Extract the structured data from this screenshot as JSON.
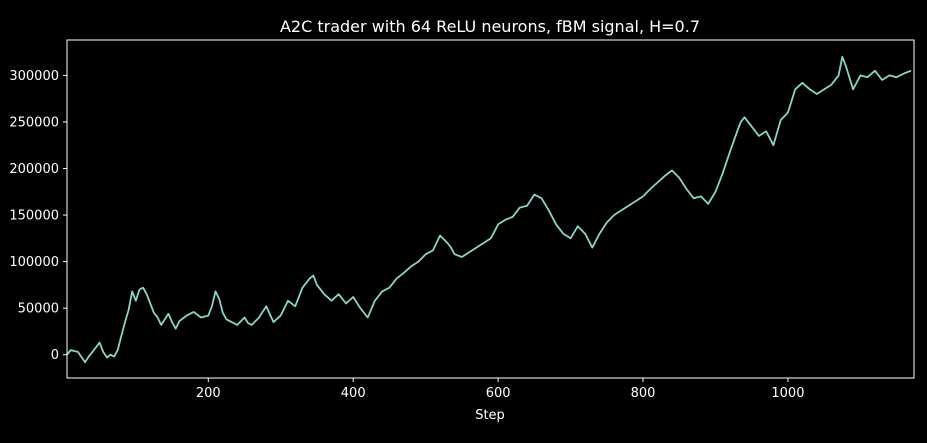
{
  "chart_data": {
    "type": "line",
    "title": "A2C trader with 64 ReLU neurons, fBM signal, H=0.7",
    "xlabel": "Step",
    "ylabel": "",
    "xlim": [
      5,
      1174
    ],
    "ylim": [
      -25000,
      338000
    ],
    "xticks": [
      200,
      400,
      600,
      800,
      1000
    ],
    "yticks": [
      0,
      50000,
      100000,
      150000,
      200000,
      250000,
      300000
    ],
    "grid": false,
    "legend": "none",
    "colors": {
      "background": "#000000",
      "line": "#8dd3c7",
      "text": "#ffffff",
      "axes": "#ffffff"
    },
    "series": [
      {
        "x": [
          5,
          10,
          20,
          30,
          35,
          40,
          50,
          55,
          60,
          65,
          70,
          75,
          80,
          85,
          90,
          95,
          100,
          105,
          110,
          115,
          120,
          125,
          130,
          135,
          140,
          145,
          150,
          155,
          160,
          170,
          180,
          190,
          200,
          205,
          210,
          215,
          220,
          225,
          230,
          240,
          250,
          255,
          260,
          270,
          280,
          290,
          300,
          310,
          320,
          330,
          340,
          345,
          350,
          360,
          370,
          380,
          390,
          400,
          410,
          420,
          430,
          440,
          450,
          460,
          470,
          480,
          490,
          500,
          510,
          520,
          530,
          535,
          540,
          550,
          560,
          570,
          580,
          590,
          600,
          610,
          620,
          630,
          640,
          650,
          660,
          670,
          680,
          690,
          700,
          710,
          720,
          730,
          740,
          750,
          760,
          770,
          780,
          790,
          800,
          810,
          820,
          830,
          840,
          850,
          860,
          870,
          880,
          890,
          900,
          910,
          920,
          930,
          935,
          940,
          950,
          960,
          970,
          980,
          990,
          1000,
          1010,
          1020,
          1030,
          1040,
          1050,
          1060,
          1070,
          1075,
          1080,
          1090,
          1100,
          1110,
          1120,
          1130,
          1140,
          1150,
          1160,
          1170
        ],
        "y": [
          0,
          5000,
          3000,
          -8000,
          -2000,
          3000,
          13000,
          3000,
          -3000,
          0,
          -2000,
          5000,
          20000,
          35000,
          48000,
          68000,
          58000,
          70000,
          72000,
          65000,
          55000,
          45000,
          40000,
          32000,
          38000,
          44000,
          35000,
          28000,
          36000,
          42000,
          46000,
          40000,
          42000,
          52000,
          68000,
          60000,
          45000,
          38000,
          36000,
          32000,
          40000,
          34000,
          32000,
          40000,
          52000,
          35000,
          42000,
          58000,
          52000,
          72000,
          82000,
          85000,
          75000,
          65000,
          58000,
          65000,
          55000,
          62000,
          50000,
          40000,
          58000,
          68000,
          72000,
          82000,
          88000,
          95000,
          100000,
          108000,
          112000,
          128000,
          120000,
          115000,
          108000,
          105000,
          110000,
          115000,
          120000,
          125000,
          140000,
          145000,
          148000,
          158000,
          160000,
          172000,
          168000,
          155000,
          140000,
          130000,
          125000,
          138000,
          130000,
          115000,
          130000,
          142000,
          150000,
          155000,
          160000,
          165000,
          170000,
          178000,
          185000,
          192000,
          198000,
          190000,
          178000,
          168000,
          170000,
          162000,
          175000,
          195000,
          218000,
          240000,
          250000,
          255000,
          245000,
          235000,
          240000,
          225000,
          252000,
          260000,
          285000,
          292000,
          285000,
          280000,
          285000,
          290000,
          300000,
          320000,
          310000,
          285000,
          300000,
          298000,
          305000,
          295000,
          300000,
          298000,
          302000,
          305000
        ]
      }
    ]
  }
}
